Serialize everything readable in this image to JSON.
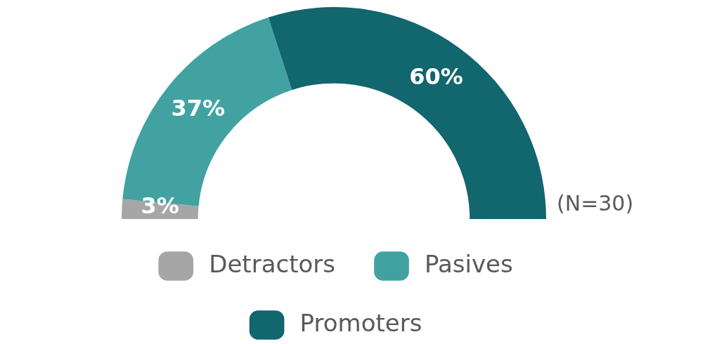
{
  "chart_data": {
    "type": "donut",
    "categories": [
      "Detractors",
      "Pasives",
      "Promoters"
    ],
    "values": [
      3,
      37,
      60
    ],
    "colors": [
      "#a6a6a6",
      "#42a2a2",
      "#12666e"
    ],
    "value_labels": [
      "3%",
      "37%",
      "60%"
    ],
    "annotations": [
      "(N=30)"
    ],
    "legend": "bottom"
  }
}
